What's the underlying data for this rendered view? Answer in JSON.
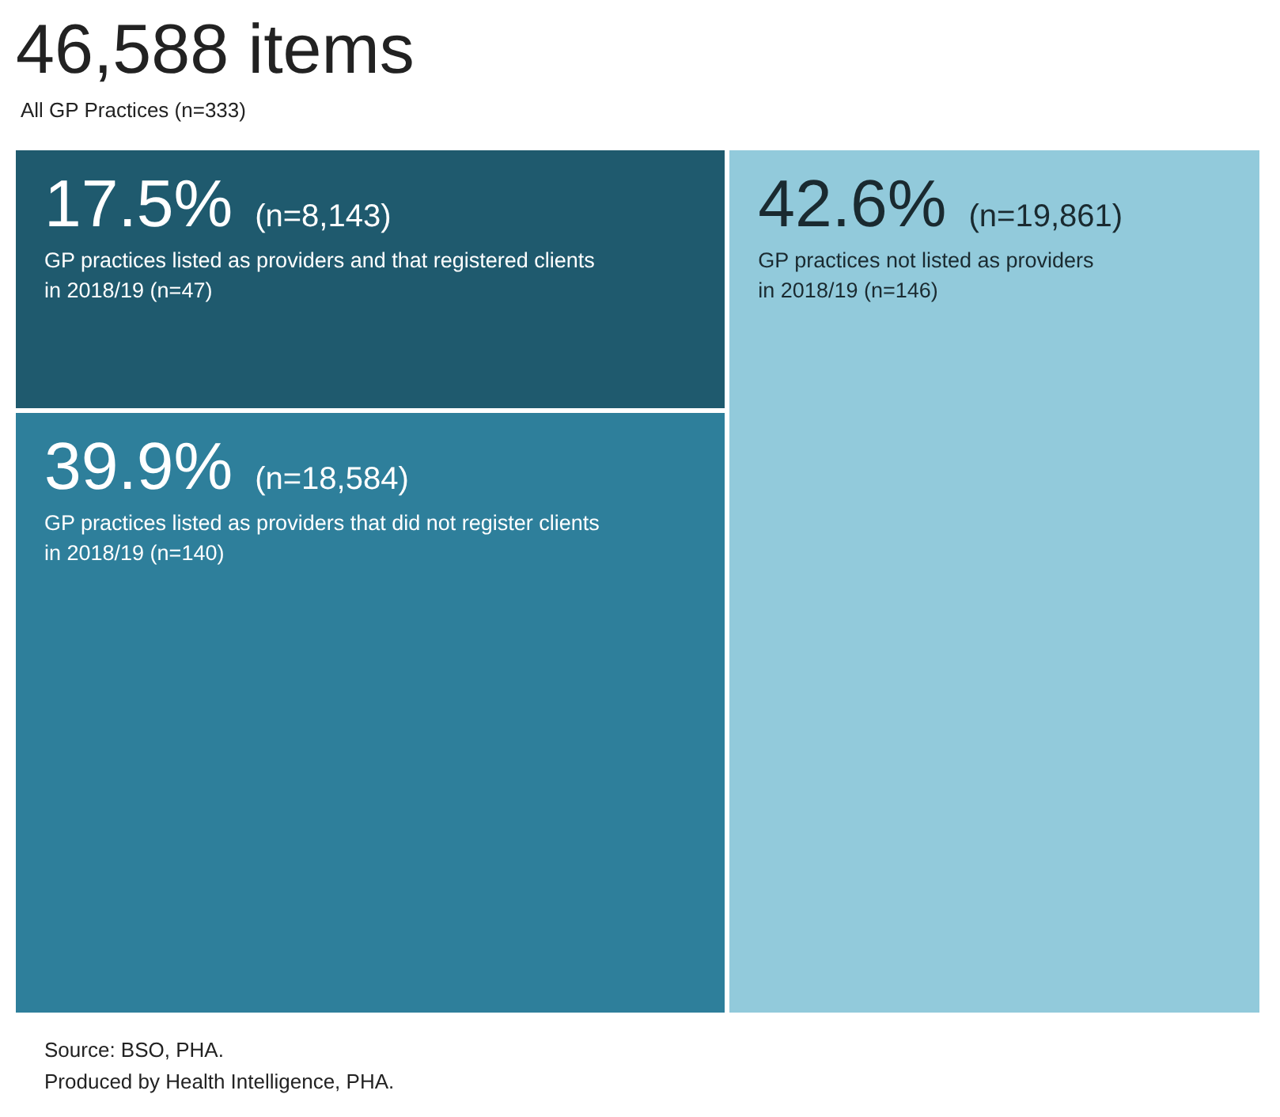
{
  "chart_data": {
    "type": "other",
    "title": "46,588 items",
    "subtitle": "All GP Practices (n=333)",
    "categories": [
      "GP practices listed as providers and that registered clients in 2018/19 (n=47)",
      "GP practices listed as providers that did not register clients in 2018/19 (n=140)",
      "GP practices not listed as providers in 2018/19 (n=146)"
    ],
    "values": [
      17.5,
      39.9,
      42.6
    ],
    "value_labels": [
      "17.5% (n=8,143)",
      "39.9% (n=18,584)",
      "42.6% (n=19,861)"
    ],
    "colors": [
      "#1f5a6e",
      "#2e7f9b",
      "#92cadb"
    ],
    "annotations": [
      "Source: BSO, PHA.",
      "Produced by Health Intelligence, PHA."
    ]
  }
}
